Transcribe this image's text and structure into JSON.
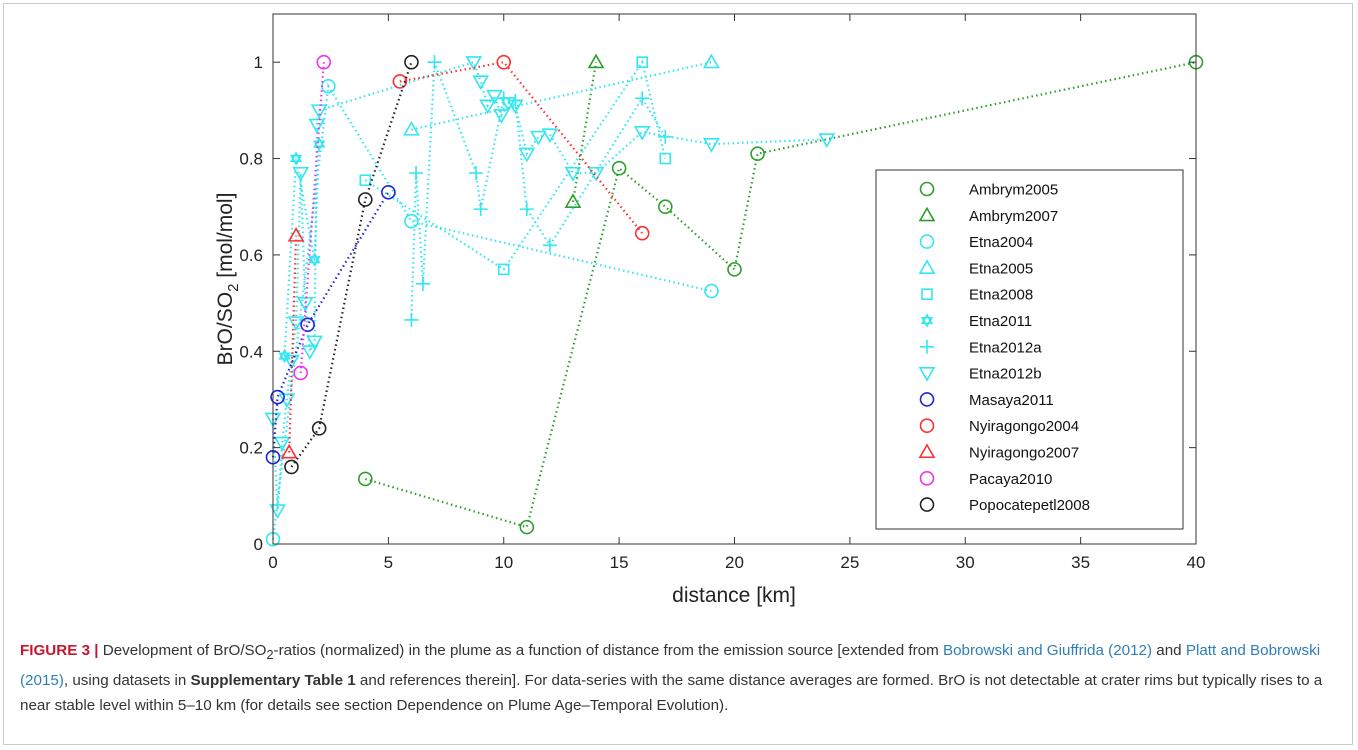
{
  "chart_data": {
    "type": "scatter",
    "xlabel": "distance [km]",
    "ylabel_main": "BrO/SO",
    "ylabel_sub": "2",
    "ylabel_tail": " [mol/mol]",
    "xlim": [
      0,
      40
    ],
    "ylim": [
      0,
      1.1
    ],
    "xticks": [
      0,
      5,
      10,
      15,
      20,
      25,
      30,
      35,
      40
    ],
    "yticks": [
      0,
      0.2,
      0.4,
      0.6,
      0.8,
      1
    ],
    "ytick_labels": [
      "0",
      "0.2",
      "0.4",
      "0.6",
      "0.8",
      "1"
    ],
    "grid": false,
    "legend_position": "right",
    "line_style": "dotted",
    "series": [
      {
        "name": "Ambrym2005",
        "color": "#2ca02c",
        "marker": "circle",
        "x": [
          4,
          11,
          15,
          17,
          20,
          21,
          40
        ],
        "y": [
          0.135,
          0.035,
          0.78,
          0.7,
          0.57,
          0.81,
          1.0
        ]
      },
      {
        "name": "Ambrym2007",
        "color": "#2ca02c",
        "marker": "triangle-up",
        "x": [
          13,
          14
        ],
        "y": [
          0.71,
          1.0
        ]
      },
      {
        "name": "Etna2004",
        "color": "#33e6f2",
        "marker": "circle",
        "x": [
          0,
          2.4,
          6,
          19
        ],
        "y": [
          0.01,
          0.95,
          0.67,
          0.525
        ]
      },
      {
        "name": "Etna2005",
        "color": "#33e6f2",
        "marker": "triangle-up",
        "x": [
          6,
          19
        ],
        "y": [
          0.86,
          1.0
        ]
      },
      {
        "name": "Etna2008",
        "color": "#33e6f2",
        "marker": "square",
        "x": [
          4,
          10,
          16,
          17
        ],
        "y": [
          0.755,
          0.57,
          1.0,
          0.8
        ]
      },
      {
        "name": "Etna2011",
        "color": "#33e6f2",
        "marker": "hexagram",
        "x": [
          0.5,
          1,
          1.8,
          2
        ],
        "y": [
          0.39,
          0.8,
          0.59,
          0.83
        ]
      },
      {
        "name": "Etna2012a",
        "color": "#33e6f2",
        "marker": "plus",
        "x": [
          6,
          6.2,
          6.5,
          7,
          8.8,
          9,
          10,
          10.5,
          11,
          12,
          16,
          17
        ],
        "y": [
          0.465,
          0.77,
          0.54,
          1.0,
          0.77,
          0.695,
          0.925,
          0.92,
          0.695,
          0.62,
          0.925,
          0.845
        ]
      },
      {
        "name": "Etna2012b",
        "color": "#33e6f2",
        "marker": "triangle-down",
        "x": [
          0,
          0.2,
          0.4,
          0.6,
          0.8,
          1,
          1.2,
          1.4,
          1.6,
          1.8,
          1.9,
          2,
          8.7,
          9,
          9.3,
          9.6,
          9.9,
          10.2,
          10.5,
          11,
          11.5,
          12,
          13,
          14,
          16,
          19,
          24
        ],
        "y": [
          0.26,
          0.07,
          0.21,
          0.3,
          0.38,
          0.46,
          0.77,
          0.5,
          0.4,
          0.42,
          0.87,
          0.9,
          1.0,
          0.96,
          0.91,
          0.93,
          0.89,
          0.915,
          0.91,
          0.81,
          0.845,
          0.85,
          0.77,
          0.77,
          0.855,
          0.83,
          0.84
        ]
      },
      {
        "name": "Masaya2011",
        "color": "#2222dd",
        "marker": "circle",
        "x": [
          0,
          0.2,
          1.5,
          5
        ],
        "y": [
          0.18,
          0.305,
          0.455,
          0.73
        ]
      },
      {
        "name": "Nyiragongo2004",
        "color": "#ff3030",
        "marker": "circle",
        "x": [
          5.5,
          10,
          16
        ],
        "y": [
          0.96,
          1.0,
          0.645
        ]
      },
      {
        "name": "Nyiragongo2007",
        "color": "#ff3030",
        "marker": "triangle-up",
        "x": [
          0.7,
          1
        ],
        "y": [
          0.19,
          0.64
        ]
      },
      {
        "name": "Pacaya2010",
        "color": "#ee33ee",
        "marker": "circle",
        "x": [
          1.2,
          2.2
        ],
        "y": [
          0.355,
          1.0
        ]
      },
      {
        "name": "Popocatepetl2008",
        "color": "#222222",
        "marker": "circle",
        "x": [
          0.8,
          2,
          4,
          6
        ],
        "y": [
          0.16,
          0.24,
          0.715,
          1.0
        ]
      }
    ]
  },
  "caption": {
    "label": "FIGURE 3 |",
    "t1": " Development of BrO/SO",
    "sub": "2",
    "t2": "-ratios (normalized) in the plume as a function of distance from the emission source [extended from ",
    "ref1": "Bobrowski and Giuffrida (2012)",
    "t3": " and ",
    "ref2": "Platt and Bobrowski (2015)",
    "t4": ", using datasets in ",
    "bold": "Supplementary Table 1",
    "t5": " and references therein]. For data-series with the same distance averages are formed. BrO is not detectable at crater rims but typically rises to a near stable level within 5–10 km (for details see section Dependence on Plume Age–Temporal Evolution)."
  }
}
